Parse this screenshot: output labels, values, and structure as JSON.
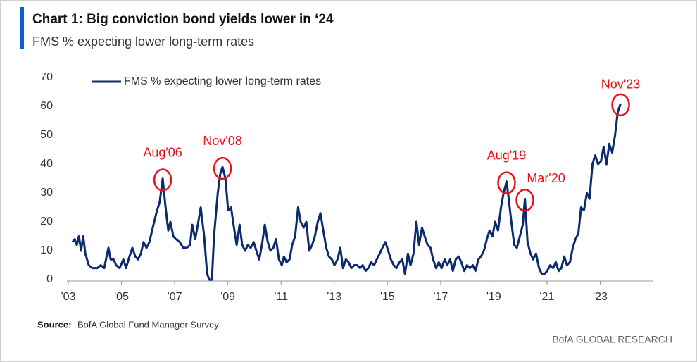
{
  "chart_data": {
    "type": "line",
    "title": "Chart 1: Big conviction bond yields lower in ‘24",
    "subtitle": "FMS % expecting lower long-term rates",
    "source_label": "Source:",
    "source": "BofA Global Fund Manager Survey",
    "footer": "BofA GLOBAL RESEARCH",
    "x": [
      2003.16,
      2003.24,
      2003.32,
      2003.4,
      2003.48,
      2003.56,
      2003.64,
      2003.77,
      2003.9,
      2004.09,
      2004.22,
      2004.35,
      2004.51,
      2004.59,
      2004.7,
      2004.8,
      2004.93,
      2005.07,
      2005.17,
      2005.3,
      2005.41,
      2005.52,
      2005.62,
      2005.73,
      2005.83,
      2005.94,
      2006.05,
      2006.15,
      2006.31,
      2006.44,
      2006.55,
      2006.66,
      2006.76,
      2006.84,
      2006.95,
      2007.05,
      2007.19,
      2007.32,
      2007.45,
      2007.58,
      2007.66,
      2007.77,
      2007.87,
      2007.98,
      2008.11,
      2008.22,
      2008.3,
      2008.4,
      2008.48,
      2008.62,
      2008.72,
      2008.8,
      2008.91,
      2009.01,
      2009.12,
      2009.23,
      2009.33,
      2009.44,
      2009.54,
      2009.65,
      2009.75,
      2009.86,
      2009.97,
      2010.07,
      2010.18,
      2010.28,
      2010.39,
      2010.5,
      2010.6,
      2010.71,
      2010.81,
      2010.92,
      2011.03,
      2011.11,
      2011.21,
      2011.32,
      2011.42,
      2011.53,
      2011.64,
      2011.74,
      2011.85,
      2011.95,
      2012.06,
      2012.17,
      2012.27,
      2012.38,
      2012.48,
      2012.59,
      2012.7,
      2012.8,
      2012.91,
      2013.01,
      2013.12,
      2013.23,
      2013.33,
      2013.44,
      2013.54,
      2013.65,
      2013.75,
      2013.86,
      2013.97,
      2014.07,
      2014.18,
      2014.28,
      2014.39,
      2014.5,
      2014.6,
      2014.71,
      2014.81,
      2014.92,
      2015.03,
      2015.13,
      2015.24,
      2015.34,
      2015.45,
      2015.56,
      2015.66,
      2015.77,
      2015.87,
      2015.98,
      2016.09,
      2016.19,
      2016.3,
      2016.4,
      2016.51,
      2016.62,
      2016.72,
      2016.83,
      2016.93,
      2017.04,
      2017.15,
      2017.25,
      2017.36,
      2017.46,
      2017.57,
      2017.68,
      2017.78,
      2017.89,
      2017.99,
      2018.1,
      2018.21,
      2018.31,
      2018.42,
      2018.52,
      2018.63,
      2018.74,
      2018.84,
      2018.95,
      2019.05,
      2019.16,
      2019.27,
      2019.37,
      2019.48,
      2019.56,
      2019.66,
      2019.77,
      2019.87,
      2019.98,
      2020.09,
      2020.17,
      2020.27,
      2020.38,
      2020.48,
      2020.59,
      2020.7,
      2020.8,
      2020.91,
      2021.01,
      2021.12,
      2021.23,
      2021.33,
      2021.44,
      2021.54,
      2021.65,
      2021.75,
      2021.86,
      2021.97,
      2022.07,
      2022.18,
      2022.28,
      2022.39,
      2022.5,
      2022.6,
      2022.71,
      2022.81,
      2022.92,
      2023.03,
      2023.13,
      2023.24,
      2023.34,
      2023.45,
      2023.56,
      2023.66,
      2023.77
    ],
    "series": [
      {
        "name": "FMS % expecting lower long-term rates",
        "color": "#0c2a6e",
        "values": [
          13,
          14,
          12,
          15,
          10,
          15,
          9,
          5,
          4,
          4,
          5,
          4,
          11,
          7,
          7,
          5,
          4,
          7,
          4,
          8,
          11,
          8,
          7,
          9,
          13,
          11,
          13,
          17,
          23,
          27,
          35,
          25,
          17,
          20,
          15,
          14,
          13,
          11,
          11,
          12,
          19,
          14,
          19,
          25,
          15,
          2,
          0,
          0,
          15,
          30,
          37,
          39,
          35,
          24,
          25,
          18,
          12,
          19,
          12,
          10,
          12,
          11,
          13,
          10,
          7,
          12,
          19,
          13,
          10,
          11,
          14,
          7,
          5,
          8,
          6,
          7,
          12,
          15,
          25,
          20,
          18,
          20,
          10,
          12,
          15,
          20,
          23,
          17,
          11,
          8,
          7,
          5,
          7,
          11,
          4,
          7,
          6,
          4,
          5,
          5,
          4,
          5,
          3,
          4,
          6,
          5,
          7,
          9,
          11,
          13,
          10,
          7,
          5,
          4,
          6,
          7,
          2,
          9,
          5,
          9,
          20,
          12,
          18,
          15,
          12,
          11,
          7,
          4,
          6,
          4,
          7,
          5,
          7,
          3,
          7,
          8,
          6,
          3,
          5,
          4,
          5,
          3,
          7,
          8,
          10,
          14,
          17,
          15,
          20,
          17,
          25,
          30,
          34,
          28,
          20,
          12,
          11,
          15,
          19,
          28,
          13,
          9,
          7,
          9,
          4,
          2,
          2,
          3,
          5,
          4,
          6,
          3,
          4,
          8,
          5,
          6,
          11,
          14,
          16,
          25,
          24,
          30,
          28,
          40,
          43,
          40,
          41,
          46,
          40,
          47,
          44,
          50,
          58,
          61
        ]
      }
    ],
    "annotations": [
      {
        "label": "Aug'06",
        "x": 2006.55,
        "y": 35
      },
      {
        "label": "Nov'08",
        "x": 2008.8,
        "y": 39
      },
      {
        "label": "Aug'19",
        "x": 2019.48,
        "y": 34
      },
      {
        "label": "Mar'20",
        "x": 2020.17,
        "y": 28
      },
      {
        "label": "Nov'23",
        "x": 2023.77,
        "y": 61
      }
    ],
    "annotation_color": "#e8101a",
    "xlim": [
      2003,
      2025
    ],
    "ylim": [
      0,
      70
    ],
    "xticks": [
      {
        "value": 2003,
        "label": "'03"
      },
      {
        "value": 2005,
        "label": "'05"
      },
      {
        "value": 2007,
        "label": "'07"
      },
      {
        "value": 2009,
        "label": "'09"
      },
      {
        "value": 2011,
        "label": "'11"
      },
      {
        "value": 2013,
        "label": "'13"
      },
      {
        "value": 2015,
        "label": "'15"
      },
      {
        "value": 2017,
        "label": "'17"
      },
      {
        "value": 2019,
        "label": "'19"
      },
      {
        "value": 2021,
        "label": "'21"
      },
      {
        "value": 2023,
        "label": "'23"
      }
    ],
    "yticks": [
      0,
      10,
      20,
      30,
      40,
      50,
      60,
      70
    ],
    "grid": false,
    "legend": "top-left"
  }
}
